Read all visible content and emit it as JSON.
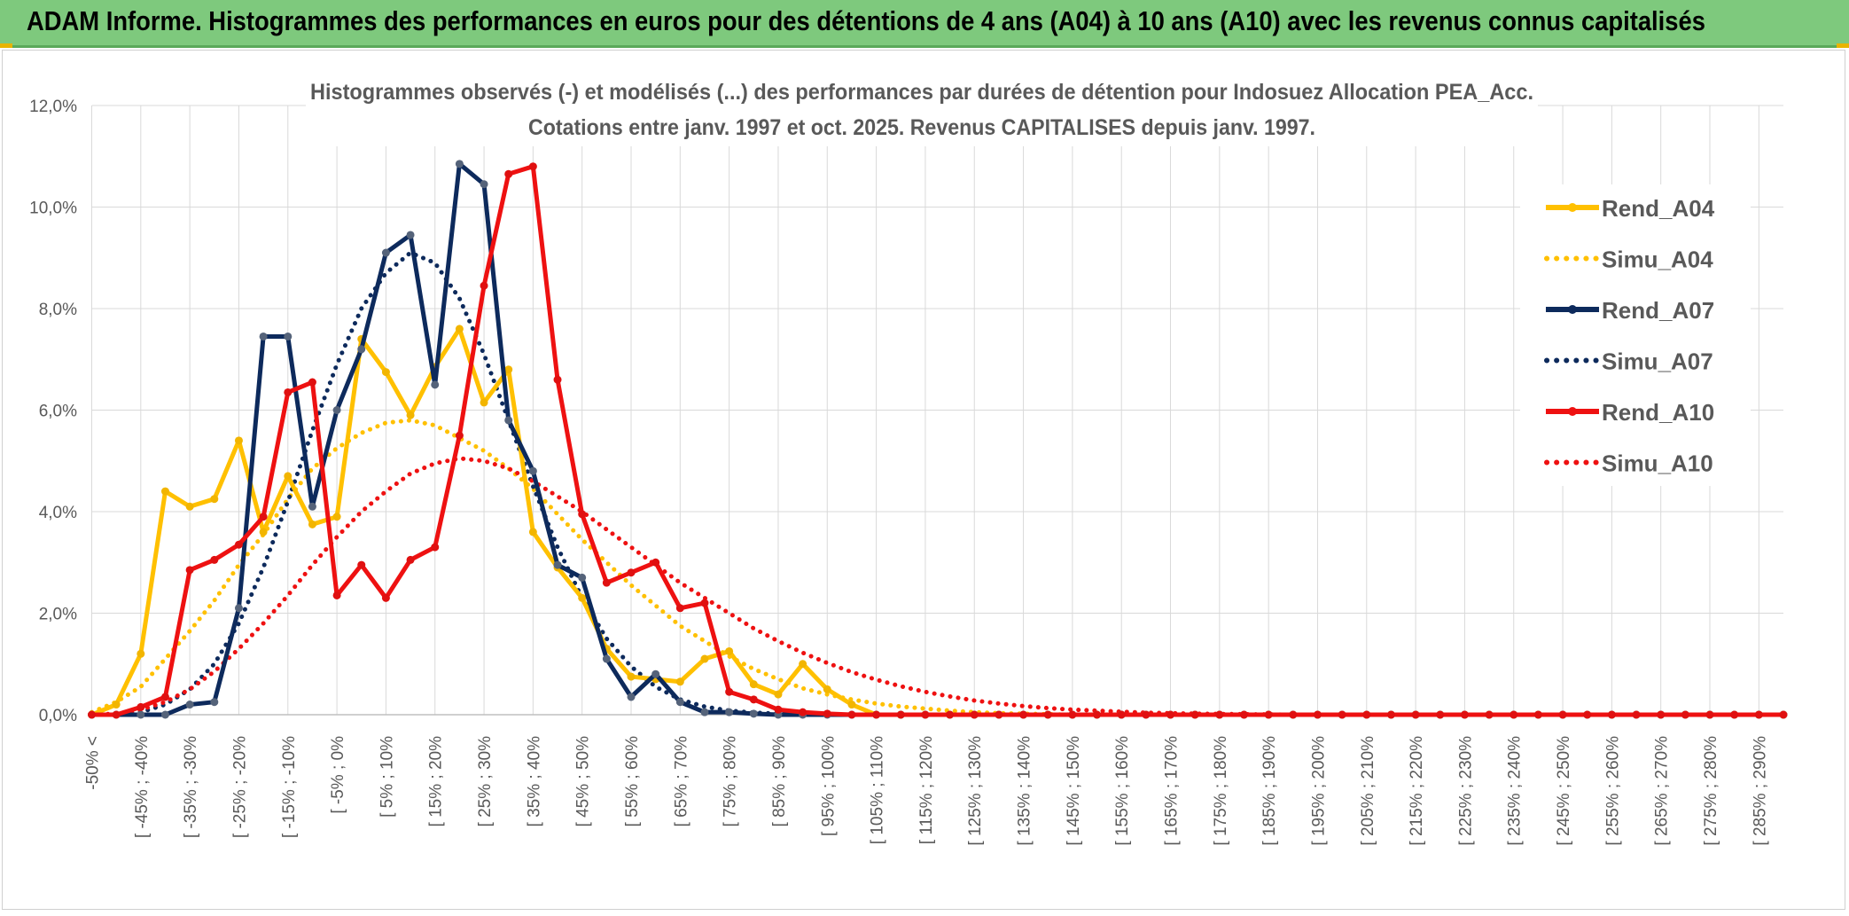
{
  "banner": {
    "title": "ADAM Informe. Histogrammes des performances en euros pour des détentions de 4 ans (A04) à 10 ans (A10) avec les revenus connus capitalisés"
  },
  "colors": {
    "A04": "#ffc000",
    "A07": "#0d2a5c",
    "A10": "#ee1111",
    "banner": "#7ec97d",
    "grid": "#d9d9d9"
  },
  "chart_data": {
    "type": "line",
    "title": "Histogrammes observés (-) et modélisés (...) des performances par durées de détention pour Indosuez Allocation PEA_Acc.",
    "subtitle": "Cotations entre janv. 1997 et oct. 2025. Revenus CAPITALISES depuis janv. 1997.",
    "xlabel": "",
    "ylabel": "",
    "ylim": [
      0,
      12
    ],
    "y_ticks": [
      "0,0%",
      "2,0%",
      "4,0%",
      "6,0%",
      "8,0%",
      "10,0%",
      "12,0%"
    ],
    "grid": true,
    "legend_position": "right",
    "categories": [
      "-50% <",
      "",
      "[ -45% ; -40%",
      "",
      "[ -35% ; -30%",
      "",
      "[ -25% ; -20%",
      "",
      "[ -15% ; -10%",
      "",
      "[ -5% ; 0%",
      "",
      "[ 5% ; 10%",
      "",
      "[ 15% ; 20%",
      "",
      "[ 25% ; 30%",
      "",
      "[ 35% ; 40%",
      "",
      "[ 45% ; 50%",
      "",
      "[ 55% ; 60%",
      "",
      "[ 65% ; 70%",
      "",
      "[ 75% ; 80%",
      "",
      "[ 85% ; 90%",
      "",
      "[ 95% ; 100%",
      "",
      "[ 105% ; 110%",
      "",
      "[ 115% ; 120%",
      "",
      "[ 125% ; 130%",
      "",
      "[ 135% ; 140%",
      "",
      "[ 145% ; 150%",
      "",
      "[ 155% ; 160%",
      "",
      "[ 165% ; 170%",
      "",
      "[ 175% ; 180%",
      "",
      "[ 185% ; 190%",
      "",
      "[ 195% ; 200%",
      "",
      "[ 205% ; 210%",
      "",
      "[ 215% ; 220%",
      "",
      "[ 225% ; 230%",
      "",
      "[ 235% ; 240%",
      "",
      "[ 245% ; 250%",
      "",
      "[ 255% ; 260%",
      "",
      "[ 265% ; 270%",
      "",
      "[ 275% ; 280%",
      "",
      "[ 285% ; 290%",
      ""
    ],
    "series": [
      {
        "name": "Rend_A04",
        "key": "A04",
        "style": "solid",
        "values": [
          0,
          0.2,
          1.2,
          4.4,
          4.1,
          4.25,
          5.4,
          3.6,
          4.7,
          3.75,
          3.9,
          7.4,
          6.75,
          5.9,
          6.85,
          7.6,
          6.15,
          6.8,
          3.6,
          2.9,
          2.3,
          1.3,
          0.75,
          0.7,
          0.65,
          1.1,
          1.25,
          0.6,
          0.4,
          1.0,
          0.5,
          0.2,
          0,
          0,
          0,
          0,
          0,
          0,
          0,
          0,
          0,
          0,
          0,
          0,
          0,
          0,
          0,
          0,
          0,
          0,
          0,
          0,
          0,
          0,
          0,
          0,
          0,
          0,
          0,
          0,
          0,
          0,
          0,
          0,
          0,
          0,
          0,
          0,
          0,
          0
        ]
      },
      {
        "name": "Simu_A04",
        "key": "A04",
        "style": "dotted",
        "values": [
          0.05,
          0.25,
          0.55,
          1.1,
          1.65,
          2.25,
          2.95,
          3.55,
          4.25,
          4.85,
          5.25,
          5.55,
          5.75,
          5.8,
          5.7,
          5.45,
          5.2,
          4.85,
          4.45,
          3.95,
          3.45,
          3.0,
          2.55,
          2.15,
          1.75,
          1.45,
          1.15,
          0.9,
          0.7,
          0.52,
          0.4,
          0.3,
          0.22,
          0.16,
          0.12,
          0.08,
          0.05,
          0.03,
          0.02,
          0.01,
          0,
          0,
          0,
          0,
          0,
          0,
          0,
          0,
          0,
          0,
          0,
          0,
          0,
          0,
          0,
          0,
          0,
          0,
          0,
          0,
          0,
          0,
          0,
          0,
          0,
          0,
          0,
          0,
          0,
          0
        ]
      },
      {
        "name": "Rend_A07",
        "key": "A07",
        "style": "solid",
        "values": [
          0,
          0,
          0,
          0,
          0.2,
          0.25,
          2.1,
          7.45,
          7.45,
          4.1,
          6.0,
          7.2,
          9.1,
          9.45,
          6.5,
          10.85,
          10.45,
          5.8,
          4.8,
          2.95,
          2.7,
          1.1,
          0.35,
          0.8,
          0.25,
          0.05,
          0.05,
          0.02,
          0,
          0,
          0,
          0,
          0,
          0,
          0,
          0,
          0,
          0,
          0,
          0,
          0,
          0,
          0,
          0,
          0,
          0,
          0,
          0,
          0,
          0,
          0,
          0,
          0,
          0,
          0,
          0,
          0,
          0,
          0,
          0,
          0,
          0,
          0,
          0,
          0,
          0,
          0,
          0,
          0,
          0
        ]
      },
      {
        "name": "Simu_A07",
        "key": "A07",
        "style": "dotted",
        "values": [
          0,
          0,
          0.05,
          0.2,
          0.5,
          1.0,
          1.8,
          2.9,
          4.2,
          5.6,
          6.9,
          8.0,
          8.7,
          9.1,
          8.9,
          8.2,
          7.1,
          5.8,
          4.5,
          3.3,
          2.3,
          1.5,
          0.95,
          0.55,
          0.3,
          0.16,
          0.08,
          0.04,
          0.02,
          0.01,
          0,
          0,
          0,
          0,
          0,
          0,
          0,
          0,
          0,
          0,
          0,
          0,
          0,
          0,
          0,
          0,
          0,
          0,
          0,
          0,
          0,
          0,
          0,
          0,
          0,
          0,
          0,
          0,
          0,
          0,
          0,
          0,
          0,
          0,
          0,
          0,
          0,
          0,
          0,
          0
        ]
      },
      {
        "name": "Rend_A10",
        "key": "A10",
        "style": "solid",
        "values": [
          0,
          0,
          0.15,
          0.35,
          2.85,
          3.05,
          3.35,
          3.9,
          6.35,
          6.55,
          2.35,
          2.95,
          2.3,
          3.05,
          3.3,
          5.5,
          8.45,
          10.65,
          10.8,
          6.6,
          3.95,
          2.6,
          2.8,
          3.0,
          2.1,
          2.2,
          0.45,
          0.3,
          0.1,
          0.05,
          0.02,
          0,
          0,
          0,
          0,
          0,
          0,
          0,
          0,
          0,
          0,
          0,
          0,
          0,
          0,
          0,
          0,
          0,
          0,
          0,
          0,
          0,
          0,
          0,
          0,
          0,
          0,
          0,
          0,
          0,
          0,
          0,
          0,
          0,
          0,
          0,
          0,
          0,
          0,
          0
        ]
      },
      {
        "name": "Simu_A10",
        "key": "A10",
        "style": "dotted",
        "values": [
          0,
          0.02,
          0.1,
          0.25,
          0.5,
          0.85,
          1.3,
          1.8,
          2.35,
          2.95,
          3.5,
          4.0,
          4.4,
          4.75,
          4.95,
          5.05,
          5.0,
          4.85,
          4.6,
          4.3,
          4.0,
          3.65,
          3.3,
          2.95,
          2.6,
          2.3,
          2.0,
          1.7,
          1.45,
          1.22,
          1.02,
          0.84,
          0.69,
          0.56,
          0.45,
          0.36,
          0.28,
          0.22,
          0.17,
          0.13,
          0.1,
          0.08,
          0.06,
          0.04,
          0.03,
          0.02,
          0.015,
          0.01,
          0.005,
          0,
          0,
          0,
          0,
          0,
          0,
          0,
          0,
          0,
          0,
          0,
          0,
          0,
          0,
          0,
          0,
          0,
          0,
          0,
          0,
          0
        ]
      }
    ]
  }
}
